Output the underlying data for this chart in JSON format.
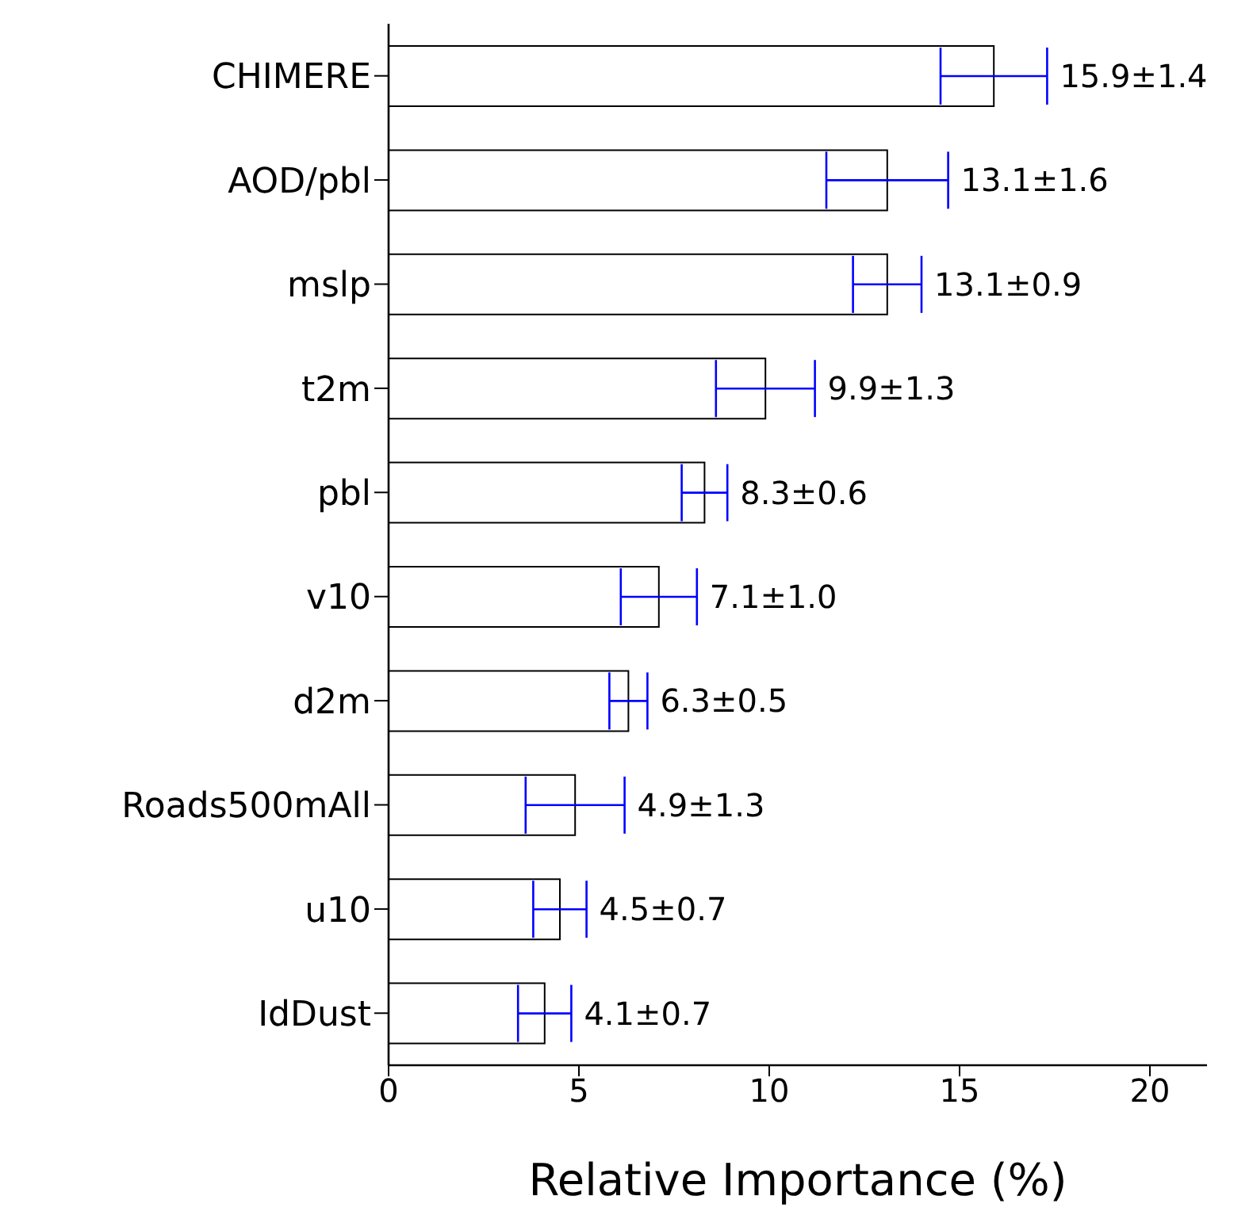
{
  "chart_data": {
    "type": "bar",
    "orientation": "horizontal",
    "xlabel": "Relative Importance (%)",
    "categories": [
      "CHIMERE",
      "AOD/pbl",
      "mslp",
      "t2m",
      "pbl",
      "v10",
      "d2m",
      "Roads500mAll",
      "u10",
      "IdDust"
    ],
    "values": [
      15.9,
      13.1,
      13.1,
      9.9,
      8.3,
      7.1,
      6.3,
      4.9,
      4.5,
      4.1
    ],
    "errors": [
      1.4,
      1.6,
      0.9,
      1.3,
      0.6,
      1.0,
      0.5,
      1.3,
      0.7,
      0.7
    ],
    "value_labels": [
      "15.9±1.4",
      "13.1±1.6",
      "13.1±0.9",
      "9.9±1.3",
      "8.3±0.6",
      "7.1±1.0",
      "6.3±0.5",
      "4.9±1.3",
      "4.5±0.7",
      "4.1±0.7"
    ],
    "color": "#ffffff",
    "xlim": [
      0,
      21.5
    ],
    "xticks": [
      0,
      5,
      10,
      15,
      20
    ],
    "grid": false
  }
}
